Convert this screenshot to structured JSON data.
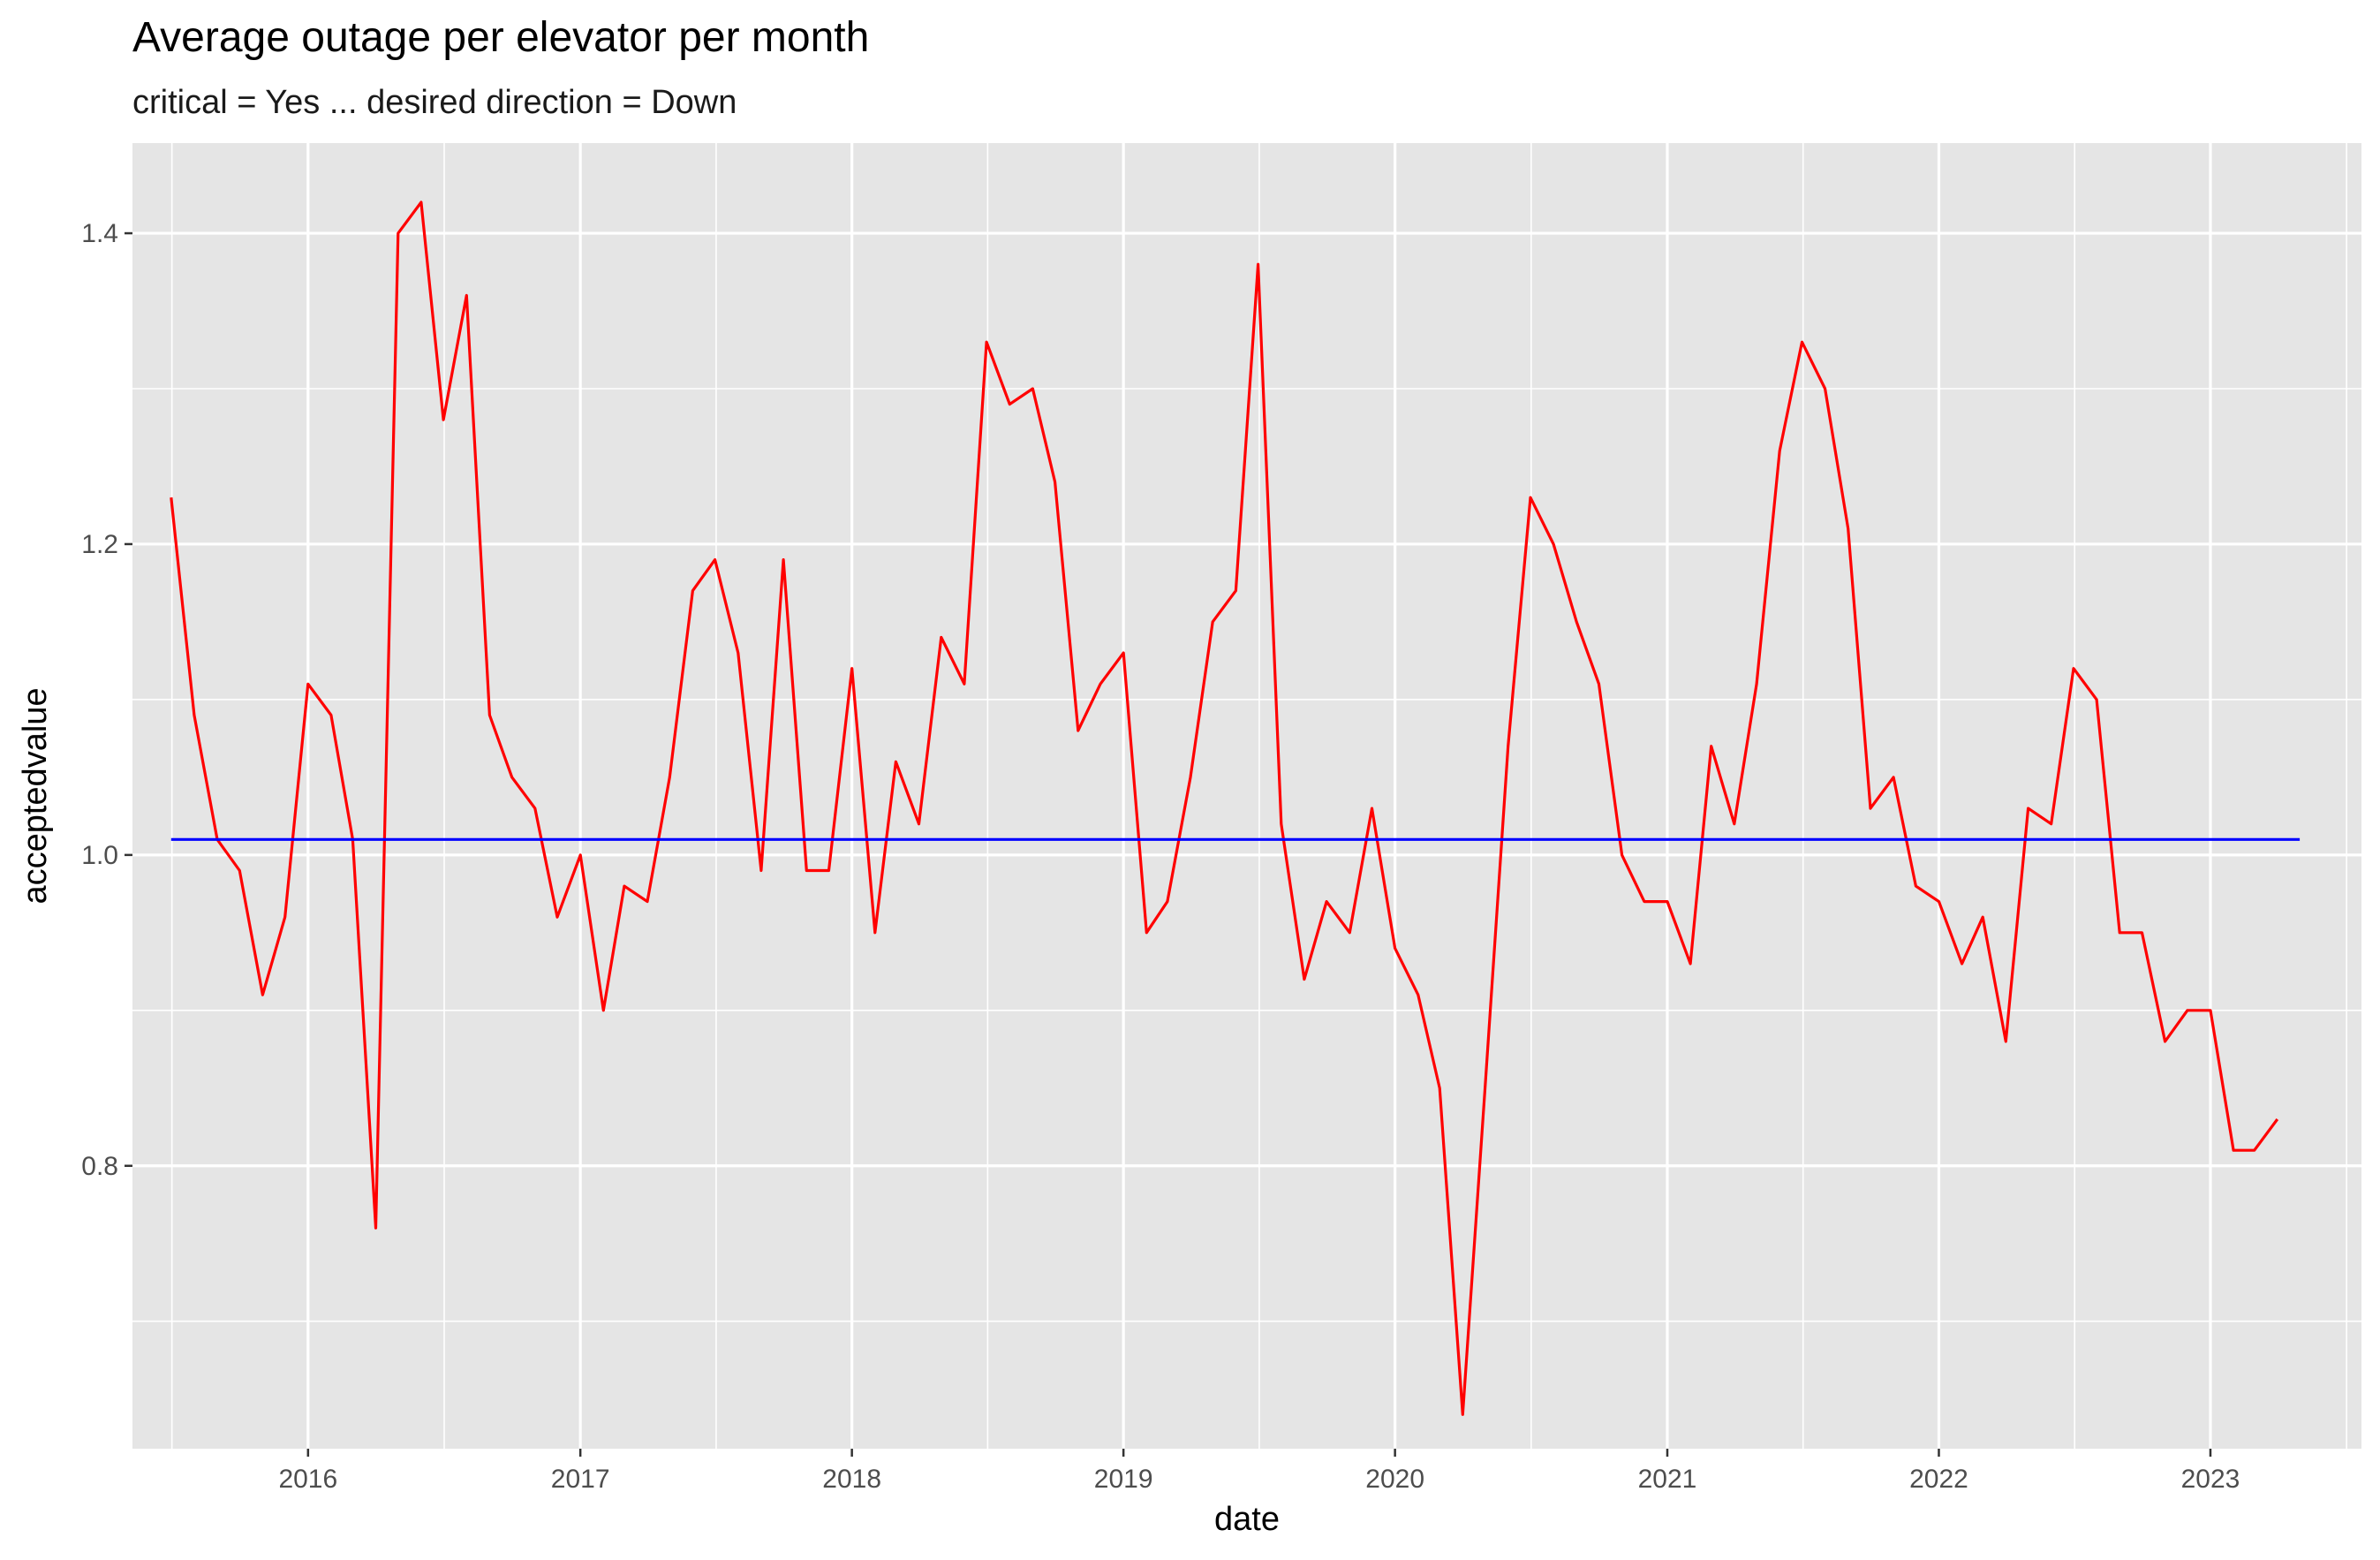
{
  "chart_data": {
    "type": "line",
    "title": "Average outage per elevator per month",
    "subtitle": "critical = Yes ... desired direction = Down",
    "xlabel": "date",
    "ylabel": "acceptedvalue",
    "xlim": [
      "2015-05-10",
      "2023-07-23"
    ],
    "ylim": [
      0.618,
      1.458
    ],
    "x_ticks": [
      "2016-01-01",
      "2017-01-01",
      "2018-01-01",
      "2019-01-01",
      "2020-01-01",
      "2021-01-01",
      "2022-01-01",
      "2023-01-01"
    ],
    "x_tick_labels": [
      "2016",
      "2017",
      "2018",
      "2019",
      "2020",
      "2021",
      "2022",
      "2023"
    ],
    "y_ticks": [
      0.8,
      1.0,
      1.2,
      1.4
    ],
    "y_tick_labels": [
      "0.8",
      "1.0",
      "1.2",
      "1.4"
    ],
    "grid": true,
    "background": "#e5e5e5",
    "grid_color": "#ffffff",
    "series": [
      {
        "color": "#ff0000",
        "x": [
          "2015-07-01",
          "2015-08-01",
          "2015-09-01",
          "2015-10-01",
          "2015-11-01",
          "2015-12-01",
          "2016-01-01",
          "2016-02-01",
          "2016-03-01",
          "2016-04-01",
          "2016-05-01",
          "2016-06-01",
          "2016-07-01",
          "2016-08-01",
          "2016-09-01",
          "2016-10-01",
          "2016-11-01",
          "2016-12-01",
          "2017-01-01",
          "2017-02-01",
          "2017-03-01",
          "2017-04-01",
          "2017-05-01",
          "2017-06-01",
          "2017-07-01",
          "2017-08-01",
          "2017-09-01",
          "2017-10-01",
          "2017-11-01",
          "2017-12-01",
          "2018-01-01",
          "2018-02-01",
          "2018-03-01",
          "2018-04-01",
          "2018-05-01",
          "2018-06-01",
          "2018-07-01",
          "2018-08-01",
          "2018-09-01",
          "2018-10-01",
          "2018-11-01",
          "2018-12-01",
          "2019-01-01",
          "2019-02-01",
          "2019-03-01",
          "2019-04-01",
          "2019-05-01",
          "2019-06-01",
          "2019-07-01",
          "2019-08-01",
          "2019-09-01",
          "2019-10-01",
          "2019-11-01",
          "2019-12-01",
          "2020-01-01",
          "2020-02-01",
          "2020-03-01",
          "2020-04-01",
          "2020-05-01",
          "2020-06-01",
          "2020-07-01",
          "2020-08-01",
          "2020-09-01",
          "2020-10-01",
          "2020-11-01",
          "2020-12-01",
          "2021-01-01",
          "2021-02-01",
          "2021-03-01",
          "2021-04-01",
          "2021-05-01",
          "2021-06-01",
          "2021-07-01",
          "2021-08-01",
          "2021-09-01",
          "2021-10-01",
          "2021-11-01",
          "2021-12-01",
          "2022-01-01",
          "2022-02-01",
          "2022-03-01",
          "2022-04-01",
          "2022-05-01",
          "2022-06-01",
          "2022-07-01",
          "2022-08-01",
          "2022-09-01",
          "2022-10-01",
          "2022-11-01",
          "2022-12-01",
          "2023-01-01",
          "2023-02-01",
          "2023-03-01",
          "2023-04-01"
        ],
        "y": [
          1.23,
          1.09,
          1.01,
          0.99,
          0.91,
          0.96,
          1.11,
          1.09,
          1.01,
          0.76,
          1.4,
          1.42,
          1.28,
          1.36,
          1.09,
          1.05,
          1.03,
          0.96,
          1.0,
          0.9,
          0.98,
          0.97,
          1.05,
          1.17,
          1.19,
          1.13,
          0.99,
          1.19,
          0.99,
          0.99,
          1.12,
          0.95,
          1.06,
          1.02,
          1.14,
          1.11,
          1.33,
          1.29,
          1.3,
          1.24,
          1.08,
          1.11,
          1.13,
          0.95,
          0.97,
          1.05,
          1.15,
          1.17,
          1.38,
          1.02,
          0.92,
          0.97,
          0.95,
          1.03,
          0.94,
          0.91,
          0.85,
          0.64,
          0.85,
          1.07,
          1.23,
          1.2,
          1.15,
          1.11,
          1.0,
          0.97,
          0.97,
          0.93,
          1.07,
          1.02,
          1.11,
          1.26,
          1.33,
          1.3,
          1.21,
          1.03,
          1.05,
          0.98,
          0.97,
          0.93,
          0.96,
          0.88,
          1.03,
          1.02,
          1.12,
          1.1,
          0.95,
          0.95,
          0.88,
          0.9,
          0.9,
          0.81,
          0.81,
          0.83
        ]
      },
      {
        "color": "#0000ff",
        "x": [
          "2015-07-01",
          "2023-05-01"
        ],
        "y": [
          1.01,
          1.01
        ]
      }
    ]
  }
}
